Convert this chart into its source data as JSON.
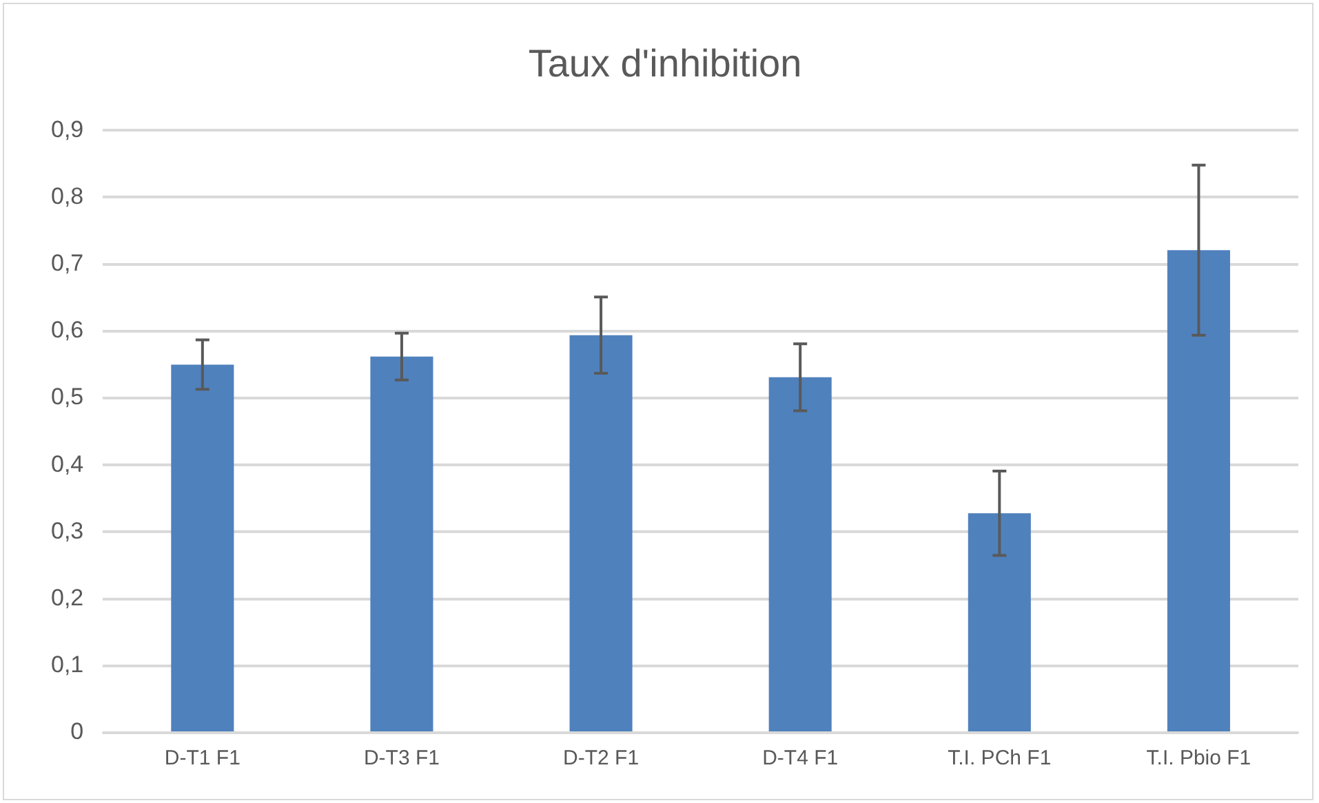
{
  "chart_data": {
    "type": "bar",
    "title": "Taux d'inhibition",
    "categories": [
      "D-T1 F1",
      "D-T3 F1",
      "D-T2 F1",
      "D-T4 F1",
      "T.I. PCh F1",
      "T.I. Pbio F1"
    ],
    "values": [
      0.55,
      0.562,
      0.594,
      0.531,
      0.328,
      0.721
    ],
    "errors": [
      0.037,
      0.035,
      0.057,
      0.05,
      0.063,
      0.127
    ],
    "color": "#4f81bd",
    "ylim": [
      0,
      0.9
    ],
    "yticks": [
      {
        "value": 0,
        "label": "0"
      },
      {
        "value": 0.1,
        "label": "0,1"
      },
      {
        "value": 0.2,
        "label": "0,2"
      },
      {
        "value": 0.3,
        "label": "0,3"
      },
      {
        "value": 0.4,
        "label": "0,4"
      },
      {
        "value": 0.5,
        "label": "0,5"
      },
      {
        "value": 0.6,
        "label": "0,6"
      },
      {
        "value": 0.7,
        "label": "0,7"
      },
      {
        "value": 0.8,
        "label": "0,8"
      },
      {
        "value": 0.9,
        "label": "0,9"
      }
    ],
    "grid": "y",
    "legend": false
  }
}
